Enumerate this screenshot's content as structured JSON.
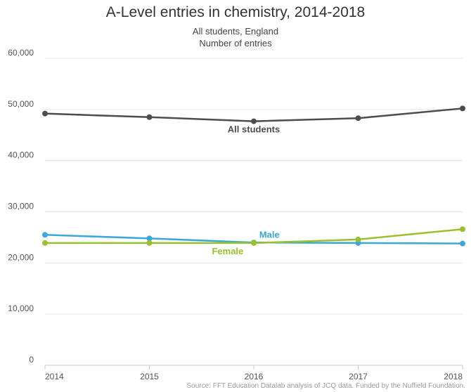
{
  "chart_data": {
    "type": "line",
    "title": "A-Level entries in chemistry, 2014-2018",
    "subtitle": [
      "All students, England",
      "Number of entries"
    ],
    "xlabel": "",
    "ylabel": "",
    "x": [
      2014,
      2015,
      2016,
      2017,
      2018
    ],
    "x_tick_labels": [
      "2014",
      "2015",
      "2016",
      "2017",
      "2018"
    ],
    "ylim": [
      0,
      60000
    ],
    "y_ticks": [
      0,
      10000,
      20000,
      30000,
      40000,
      50000,
      60000
    ],
    "y_tick_labels": [
      "0",
      "10,000",
      "20,000",
      "30,000",
      "40,000",
      "50,000",
      "60,000"
    ],
    "grid": true,
    "series": [
      {
        "name": "All students",
        "values": [
          49200,
          48500,
          47700,
          48300,
          50200
        ],
        "color": "#4d4d4d"
      },
      {
        "name": "Male",
        "values": [
          25500,
          24800,
          24000,
          23900,
          23800
        ],
        "color": "#3aa8d8"
      },
      {
        "name": "Female",
        "values": [
          23900,
          23900,
          23900,
          24600,
          26600
        ],
        "color": "#9bbf2d"
      }
    ],
    "source": "Source: FFT Education Datalab analysis of JCQ data. Funded by the Nuffield Foundation."
  }
}
